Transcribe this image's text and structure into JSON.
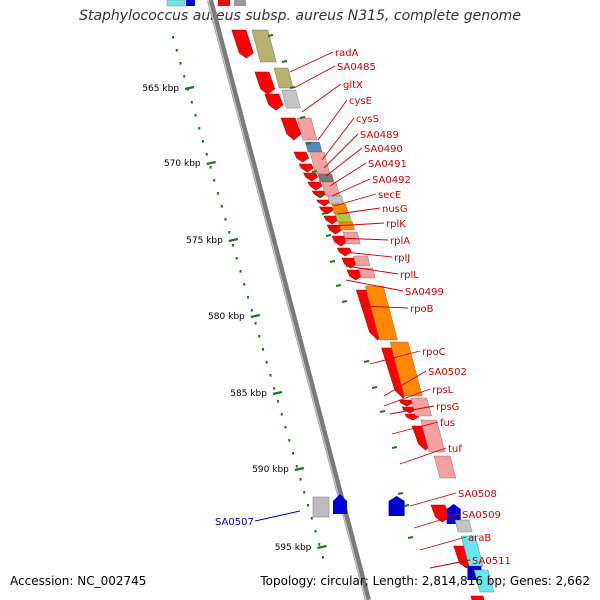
{
  "title": "Staphylococcus aureus subsp. aureus N315, complete genome",
  "footer": {
    "accession": "Accession: NC_002745",
    "topology": "Topology: circular; Length: 2,814,816 bp; Genes: 2,662"
  },
  "colors": {
    "forward_gene": "#ff0000",
    "reverse_gene": "#0000cc",
    "label_forward": "#cc0000",
    "label_reverse": "#0000aa",
    "backbone": "#808080",
    "scale_tick": "#1a7a1a"
  },
  "scale": {
    "unit": "kbp",
    "ticks": [
      {
        "label": "565 kbp"
      },
      {
        "label": "570 kbp"
      },
      {
        "label": "575 kbp"
      },
      {
        "label": "580 kbp"
      },
      {
        "label": "585 kbp"
      },
      {
        "label": "590 kbp"
      },
      {
        "label": "595 kbp"
      }
    ]
  },
  "genes": [
    {
      "name": "radA",
      "strand": "+",
      "color": "#ff0000"
    },
    {
      "name": "SA0485",
      "strand": "+",
      "color": "#ff0000"
    },
    {
      "name": "gltX",
      "strand": "+",
      "color": "#ff0000"
    },
    {
      "name": "cysE",
      "strand": "+",
      "color": "#ff0000"
    },
    {
      "name": "cysS",
      "strand": "+",
      "color": "#ff0000"
    },
    {
      "name": "SA0489",
      "strand": "+",
      "color": "#ff0000"
    },
    {
      "name": "SA0490",
      "strand": "+",
      "color": "#ff0000"
    },
    {
      "name": "SA0491",
      "strand": "+",
      "color": "#ff0000"
    },
    {
      "name": "SA0492",
      "strand": "+",
      "color": "#ff0000"
    },
    {
      "name": "secE",
      "strand": "+",
      "color": "#ff0000"
    },
    {
      "name": "nusG",
      "strand": "+",
      "color": "#ff0000"
    },
    {
      "name": "rplK",
      "strand": "+",
      "color": "#ff0000"
    },
    {
      "name": "rplA",
      "strand": "+",
      "color": "#ff0000"
    },
    {
      "name": "rplJ",
      "strand": "+",
      "color": "#ff0000"
    },
    {
      "name": "rplL",
      "strand": "+",
      "color": "#ff0000"
    },
    {
      "name": "SA0499",
      "strand": "+",
      "color": "#ff0000"
    },
    {
      "name": "rpoB",
      "strand": "+",
      "color": "#ff0000"
    },
    {
      "name": "rpoC",
      "strand": "+",
      "color": "#ff0000"
    },
    {
      "name": "SA0502",
      "strand": "+",
      "color": "#ff0000"
    },
    {
      "name": "rpsL",
      "strand": "+",
      "color": "#ff0000"
    },
    {
      "name": "rpsG",
      "strand": "+",
      "color": "#ff0000"
    },
    {
      "name": "fus",
      "strand": "+",
      "color": "#ff0000"
    },
    {
      "name": "tuf",
      "strand": "+",
      "color": "#ff0000"
    },
    {
      "name": "SA0507",
      "strand": "-",
      "color": "#0000cc"
    },
    {
      "name": "SA0508",
      "strand": "+",
      "color": "#ff0000"
    },
    {
      "name": "SA0509",
      "strand": "+",
      "color": "#ff0000"
    },
    {
      "name": "araB",
      "strand": "+",
      "color": "#ff0000"
    },
    {
      "name": "SA0511",
      "strand": "+",
      "color": "#ff0000"
    }
  ]
}
